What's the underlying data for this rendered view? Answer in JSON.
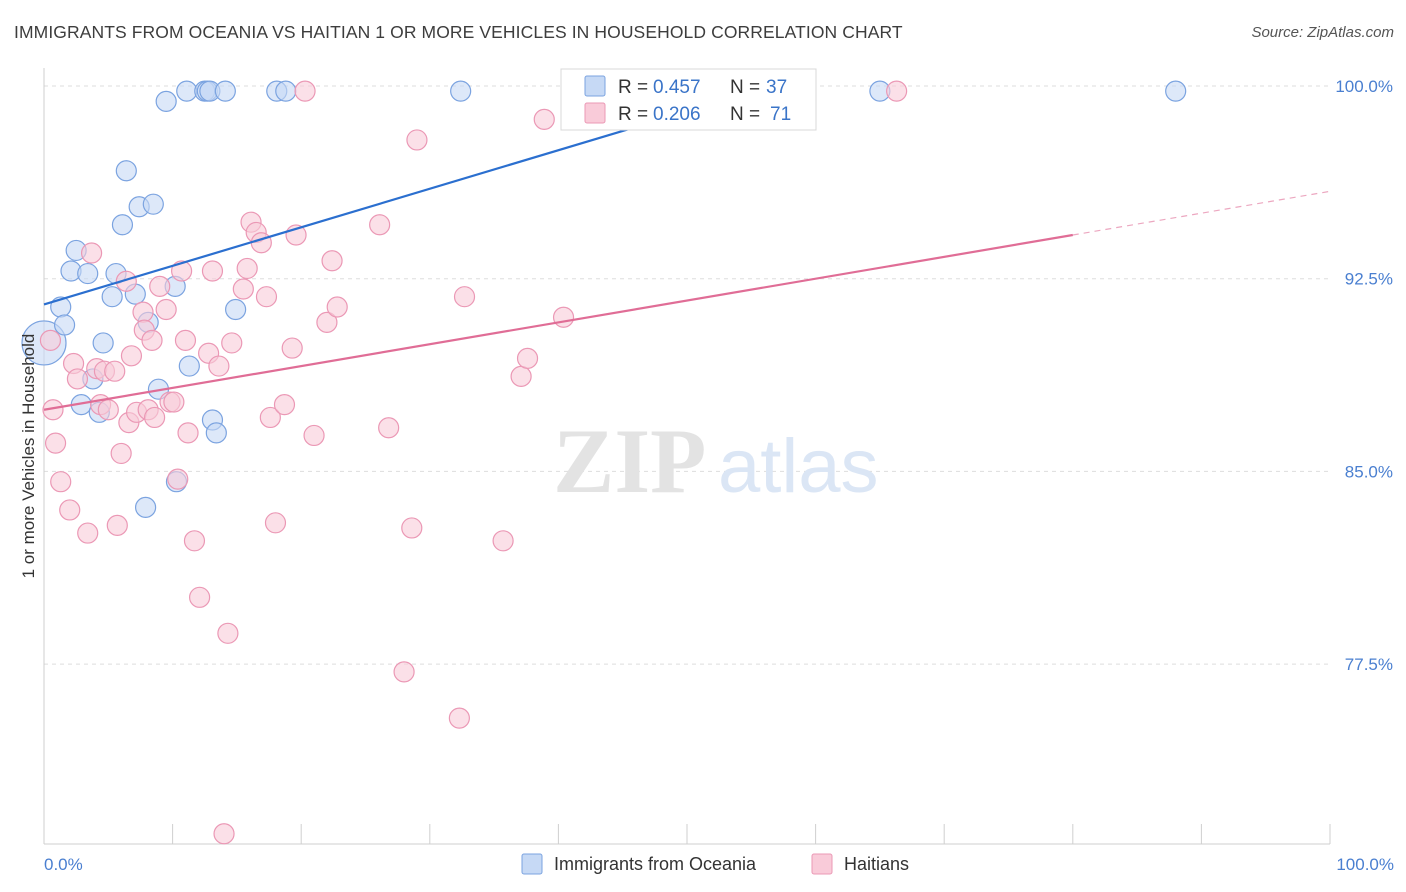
{
  "title": "IMMIGRANTS FROM OCEANIA VS HAITIAN 1 OR MORE VEHICLES IN HOUSEHOLD CORRELATION CHART",
  "source": "Source: ZipAtlas.com",
  "watermark": {
    "zip": "ZIP",
    "atlas": "atlas"
  },
  "colors": {
    "oceania_fill": "#c6d9f5",
    "oceania_stroke": "#7ba3e0",
    "oceania_line": "#2b6fcf",
    "haitian_fill": "#f9cbd9",
    "haitian_stroke": "#eb98b5",
    "haitian_line": "#e06d96",
    "tick_text": "#4a7fd0",
    "grid": "#dddddd"
  },
  "legend": {
    "rows": [
      {
        "r_label": "R = ",
        "r_value": "0.457",
        "n_label": "N = ",
        "n_value": "37",
        "series": "oceania"
      },
      {
        "r_label": "R = ",
        "r_value": "0.206",
        "n_label": "N = ",
        "n_value": "71",
        "series": "haitian"
      }
    ]
  },
  "bottom_legend": [
    "Immigrants from Oceania",
    "Haitians"
  ],
  "chart_data": {
    "type": "scatter",
    "title": "IMMIGRANTS FROM OCEANIA VS HAITIAN 1 OR MORE VEHICLES IN HOUSEHOLD CORRELATION CHART",
    "xlabel": "",
    "ylabel": "1 or more Vehicles in Household",
    "xlim": [
      0,
      100
    ],
    "ylim": [
      70.5,
      100.7
    ],
    "x_tick_labels": {
      "left": "0.0%",
      "right": "100.0%"
    },
    "y_ticks": [
      {
        "value": 100.0,
        "label": "100.0%"
      },
      {
        "value": 92.5,
        "label": "92.5%"
      },
      {
        "value": 85.0,
        "label": "85.0%"
      },
      {
        "value": 77.5,
        "label": "77.5%"
      }
    ],
    "series": [
      {
        "name": "Immigrants from Oceania",
        "key": "oceania",
        "R": 0.457,
        "N": 37,
        "trend": {
          "x0": 0,
          "y0": 91.5,
          "x1": 100,
          "y1": 106.5,
          "solid_until": 63.0,
          "dashed_until": 65.0
        },
        "points": [
          [
            0.0,
            90.0,
            22
          ],
          [
            1.3,
            91.4,
            10
          ],
          [
            1.6,
            90.7,
            10
          ],
          [
            2.1,
            92.8,
            10
          ],
          [
            2.5,
            93.6,
            10
          ],
          [
            2.9,
            87.6,
            10
          ],
          [
            3.4,
            92.7,
            10
          ],
          [
            3.8,
            88.6,
            10
          ],
          [
            4.3,
            87.3,
            10
          ],
          [
            4.6,
            90.0,
            10
          ],
          [
            5.6,
            92.7,
            10
          ],
          [
            5.3,
            91.8,
            10
          ],
          [
            6.1,
            94.6,
            10
          ],
          [
            6.4,
            96.7,
            10
          ],
          [
            7.1,
            91.9,
            10
          ],
          [
            7.4,
            95.3,
            10
          ],
          [
            8.1,
            90.8,
            10
          ],
          [
            8.5,
            95.4,
            10
          ],
          [
            8.9,
            88.2,
            10
          ],
          [
            9.5,
            99.4,
            10
          ],
          [
            10.2,
            92.2,
            10
          ],
          [
            11.1,
            99.8,
            10
          ],
          [
            11.3,
            89.1,
            10
          ],
          [
            12.5,
            99.8,
            10
          ],
          [
            12.7,
            99.8,
            10
          ],
          [
            12.9,
            99.8,
            10
          ],
          [
            13.1,
            87.0,
            10
          ],
          [
            13.4,
            86.5,
            10
          ],
          [
            14.1,
            99.8,
            10
          ],
          [
            14.9,
            91.3,
            10
          ],
          [
            18.1,
            99.8,
            10
          ],
          [
            18.8,
            99.8,
            10
          ],
          [
            10.3,
            84.6,
            10
          ],
          [
            7.9,
            83.6,
            10
          ],
          [
            32.4,
            99.8,
            10
          ],
          [
            65.0,
            99.8,
            10
          ],
          [
            88.0,
            99.8,
            10
          ]
        ]
      },
      {
        "name": "Haitians",
        "key": "haitian",
        "R": 0.206,
        "N": 71,
        "trend": {
          "x0": 0,
          "y0": 87.4,
          "x1": 100,
          "y1": 95.9,
          "solid_until": 80.0,
          "dashed_until": 100.0
        },
        "points": [
          [
            0.5,
            90.1,
            10
          ],
          [
            0.7,
            87.4,
            10
          ],
          [
            0.9,
            86.1,
            10
          ],
          [
            1.3,
            84.6,
            10
          ],
          [
            2.0,
            83.5,
            10
          ],
          [
            2.3,
            89.2,
            10
          ],
          [
            2.6,
            88.6,
            10
          ],
          [
            3.4,
            82.6,
            10
          ],
          [
            3.7,
            93.5,
            10
          ],
          [
            4.1,
            89.0,
            10
          ],
          [
            4.4,
            87.6,
            10
          ],
          [
            4.7,
            88.9,
            10
          ],
          [
            5.0,
            87.4,
            10
          ],
          [
            5.5,
            88.9,
            10
          ],
          [
            5.7,
            82.9,
            10
          ],
          [
            6.0,
            85.7,
            10
          ],
          [
            6.4,
            92.4,
            10
          ],
          [
            6.6,
            86.9,
            10
          ],
          [
            6.8,
            89.5,
            10
          ],
          [
            7.2,
            87.3,
            10
          ],
          [
            7.7,
            91.2,
            10
          ],
          [
            7.8,
            90.5,
            10
          ],
          [
            8.1,
            87.4,
            10
          ],
          [
            8.4,
            90.1,
            10
          ],
          [
            8.6,
            87.1,
            10
          ],
          [
            9.0,
            92.2,
            10
          ],
          [
            9.5,
            91.3,
            10
          ],
          [
            9.8,
            87.7,
            10
          ],
          [
            10.1,
            87.7,
            10
          ],
          [
            10.4,
            84.7,
            10
          ],
          [
            10.7,
            92.8,
            10
          ],
          [
            11.0,
            90.1,
            10
          ],
          [
            11.2,
            86.5,
            10
          ],
          [
            11.7,
            82.3,
            10
          ],
          [
            12.1,
            80.1,
            10
          ],
          [
            12.8,
            89.6,
            10
          ],
          [
            13.1,
            92.8,
            10
          ],
          [
            13.6,
            89.1,
            10
          ],
          [
            14.3,
            78.7,
            10
          ],
          [
            14.6,
            90.0,
            10
          ],
          [
            15.5,
            92.1,
            10
          ],
          [
            15.8,
            92.9,
            10
          ],
          [
            16.1,
            94.7,
            10
          ],
          [
            16.5,
            94.3,
            10
          ],
          [
            16.9,
            93.9,
            10
          ],
          [
            17.3,
            91.8,
            10
          ],
          [
            17.6,
            87.1,
            10
          ],
          [
            18.0,
            83.0,
            10
          ],
          [
            18.7,
            87.6,
            10
          ],
          [
            19.3,
            89.8,
            10
          ],
          [
            19.6,
            94.2,
            10
          ],
          [
            20.3,
            99.8,
            10
          ],
          [
            21.0,
            86.4,
            10
          ],
          [
            22.0,
            90.8,
            10
          ],
          [
            22.4,
            93.2,
            10
          ],
          [
            22.8,
            91.4,
            10
          ],
          [
            26.1,
            94.6,
            10
          ],
          [
            26.8,
            86.7,
            10
          ],
          [
            28.0,
            77.2,
            10
          ],
          [
            28.6,
            82.8,
            10
          ],
          [
            29.0,
            97.9,
            10
          ],
          [
            32.3,
            75.4,
            10
          ],
          [
            32.7,
            91.8,
            10
          ],
          [
            35.7,
            82.3,
            10
          ],
          [
            37.1,
            88.7,
            10
          ],
          [
            37.6,
            89.4,
            10
          ],
          [
            38.9,
            98.7,
            10
          ],
          [
            40.4,
            91.0,
            10
          ],
          [
            66.3,
            99.8,
            10
          ],
          [
            14.0,
            70.9,
            10
          ],
          [
            14.0,
            70.9,
            0
          ]
        ]
      }
    ]
  }
}
